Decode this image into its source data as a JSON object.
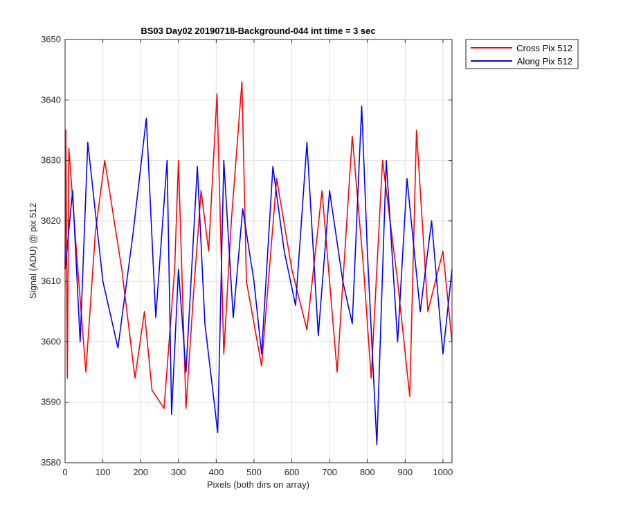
{
  "chart_data": {
    "type": "line",
    "title": "BS03 Day02 20190718-Background-044 int time = 3 sec",
    "xlabel": "Pixels (both dirs on array)",
    "ylabel": "Signal (ADU) @ pix 512",
    "xlim": [
      0,
      1024
    ],
    "ylim": [
      3580,
      3650
    ],
    "xticks": [
      0,
      100,
      200,
      300,
      400,
      500,
      600,
      700,
      800,
      900,
      1000
    ],
    "yticks": [
      3580,
      3590,
      3600,
      3610,
      3620,
      3630,
      3640,
      3650
    ],
    "grid": true,
    "legend_position": "outside-top-right",
    "series": [
      {
        "name": "Cross Pix 512",
        "color": "#ff0000",
        "x": [
          0,
          2,
          6,
          10,
          30,
          55,
          80,
          105,
          150,
          185,
          210,
          230,
          262,
          290,
          300,
          320,
          340,
          360,
          380,
          402,
          420,
          440,
          468,
          480,
          520,
          560,
          600,
          640,
          680,
          720,
          760,
          790,
          810,
          840,
          880,
          912,
          930,
          960,
          1000,
          1024
        ],
        "y": [
          3612,
          3635,
          3594,
          3632,
          3615,
          3595,
          3618,
          3630,
          3612,
          3594,
          3605,
          3592,
          3589,
          3612,
          3630,
          3589,
          3608,
          3625,
          3615,
          3641,
          3598,
          3620,
          3643,
          3610,
          3596,
          3627,
          3612,
          3602,
          3625,
          3595,
          3634,
          3612,
          3594,
          3630,
          3610,
          3591,
          3635,
          3605,
          3615,
          3600
        ]
      },
      {
        "name": "Along Pix 512",
        "color": "#0000ff",
        "x": [
          0,
          20,
          40,
          60,
          100,
          140,
          180,
          215,
          240,
          270,
          282,
          300,
          320,
          350,
          370,
          404,
          420,
          445,
          470,
          500,
          520,
          550,
          580,
          610,
          640,
          670,
          700,
          735,
          760,
          785,
          800,
          825,
          850,
          880,
          905,
          940,
          970,
          1000,
          1024
        ],
        "y": [
          3612,
          3625,
          3600,
          3633,
          3610,
          3599,
          3618,
          3637,
          3604,
          3630,
          3588,
          3612,
          3595,
          3629,
          3603,
          3585,
          3630,
          3604,
          3622,
          3610,
          3598,
          3629,
          3615,
          3606,
          3633,
          3601,
          3625,
          3610,
          3603,
          3639,
          3615,
          3583,
          3630,
          3600,
          3627,
          3605,
          3620,
          3598,
          3612
        ]
      }
    ]
  }
}
